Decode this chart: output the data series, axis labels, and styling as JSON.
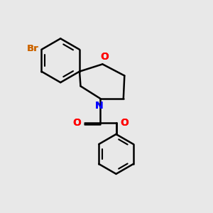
{
  "background_color": "#e8e8e8",
  "line_color": "#000000",
  "bond_width": 1.8,
  "figsize": [
    3.0,
    3.0
  ],
  "dpi": 100,
  "atom_colors": {
    "O": "#ff0000",
    "N": "#0000ff",
    "Br": "#cc6600",
    "C": "#000000"
  },
  "font_size": 9.5
}
